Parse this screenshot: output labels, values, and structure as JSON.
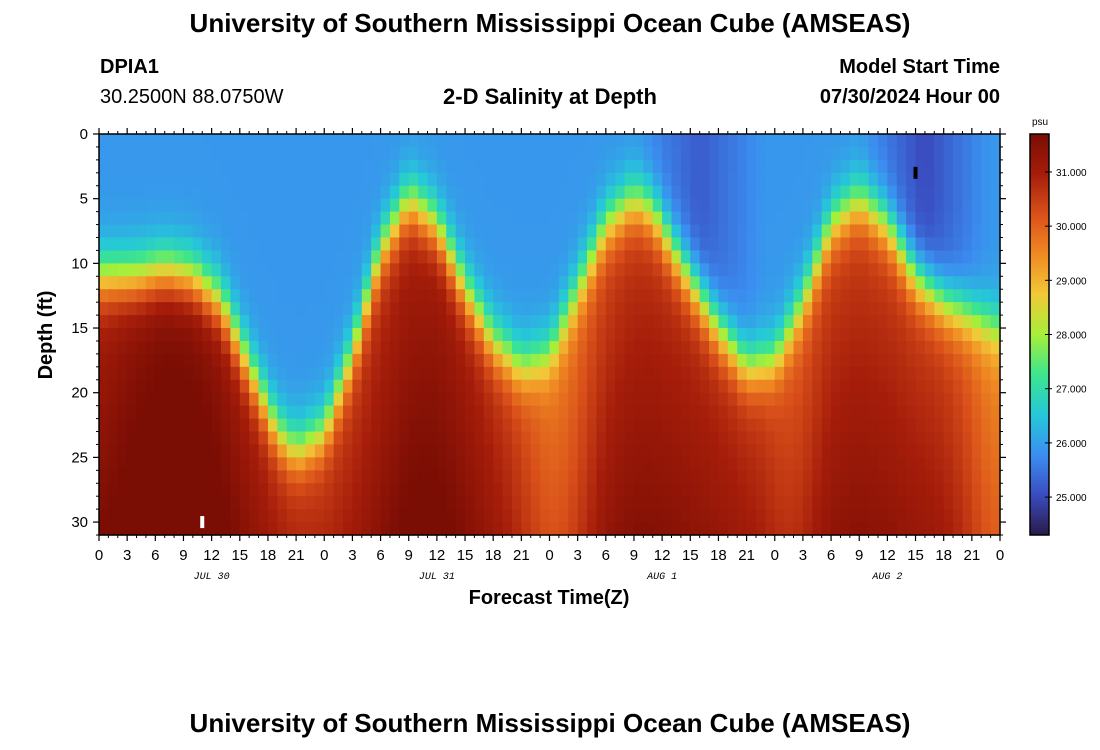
{
  "header": {
    "title": "University of Southern Mississippi Ocean Cube (AMSEAS)",
    "station_id": "DPIA1",
    "station_coords": "30.2500N  88.0750W",
    "chart_title": "2-D Salinity at Depth",
    "model_start_label": "Model Start Time",
    "model_start_value": "07/30/2024 Hour 00"
  },
  "footer": {
    "title": "University of Southern Mississippi Ocean Cube (AMSEAS)"
  },
  "chart_data": {
    "type": "heatmap",
    "title": "2-D Salinity at Depth",
    "xlabel": "Forecast Time(Z)",
    "ylabel": "Depth (ft)",
    "x_range_hours": [
      0,
      96
    ],
    "y_range_ft": [
      0,
      31
    ],
    "y_ticks": [
      0,
      5,
      10,
      15,
      20,
      25,
      30
    ],
    "x_tick_labels": [
      "0",
      "3",
      "6",
      "9",
      "12",
      "15",
      "18",
      "21",
      "0",
      "3",
      "6",
      "9",
      "12",
      "15",
      "18",
      "21",
      "0",
      "3",
      "6",
      "9",
      "12",
      "15",
      "18",
      "21",
      "0",
      "3",
      "6",
      "9",
      "12",
      "15",
      "18",
      "21",
      "0"
    ],
    "date_labels": [
      {
        "text": "JUL 30",
        "hour": 12
      },
      {
        "text": "JUL 31",
        "hour": 36
      },
      {
        "text": "AUG 1",
        "hour": 60
      },
      {
        "text": "AUG 2",
        "hour": 84
      }
    ],
    "colorbar": {
      "unit": "psu",
      "min": 24.3,
      "max": 31.7,
      "tick_values": [
        25.0,
        26.0,
        27.0,
        28.0,
        29.0,
        30.0,
        31.0
      ],
      "tick_labels": [
        "25.000",
        "26.000",
        "27.000",
        "28.000",
        "29.000",
        "30.000",
        "31.000"
      ],
      "colors": [
        "#2a1a48",
        "#3a4cc0",
        "#3b8ef0",
        "#25c8d8",
        "#3de58e",
        "#a6ef3a",
        "#f2c838",
        "#f08a22",
        "#d9501a",
        "#a51d0a",
        "#7a0d04"
      ]
    },
    "halocline_depth_ft": [
      {
        "hour": 0,
        "depth": 11
      },
      {
        "hour": 4,
        "depth": 11
      },
      {
        "hour": 7,
        "depth": 10.5
      },
      {
        "hour": 10,
        "depth": 11
      },
      {
        "hour": 13,
        "depth": 13
      },
      {
        "hour": 16,
        "depth": 18
      },
      {
        "hour": 19,
        "depth": 23
      },
      {
        "hour": 21,
        "depth": 24.5
      },
      {
        "hour": 24,
        "depth": 23
      },
      {
        "hour": 27,
        "depth": 17
      },
      {
        "hour": 30,
        "depth": 9
      },
      {
        "hour": 33,
        "depth": 5
      },
      {
        "hour": 36,
        "depth": 7
      },
      {
        "hour": 39,
        "depth": 12
      },
      {
        "hour": 42,
        "depth": 16
      },
      {
        "hour": 45,
        "depth": 18
      },
      {
        "hour": 48,
        "depth": 17
      },
      {
        "hour": 51,
        "depth": 12
      },
      {
        "hour": 54,
        "depth": 7
      },
      {
        "hour": 57,
        "depth": 5
      },
      {
        "hour": 59,
        "depth": 6
      },
      {
        "hour": 62,
        "depth": 10
      },
      {
        "hour": 66,
        "depth": 15
      },
      {
        "hour": 69,
        "depth": 18
      },
      {
        "hour": 72,
        "depth": 17.5
      },
      {
        "hour": 75,
        "depth": 13
      },
      {
        "hour": 78,
        "depth": 7
      },
      {
        "hour": 81,
        "depth": 5
      },
      {
        "hour": 84,
        "depth": 7
      },
      {
        "hour": 87,
        "depth": 11
      },
      {
        "hour": 90,
        "depth": 13
      },
      {
        "hour": 93,
        "depth": 14
      },
      {
        "hour": 96,
        "depth": 15
      }
    ],
    "markers": [
      {
        "hour": 11,
        "depth": 30,
        "color": "#ffffff"
      },
      {
        "hour": 87,
        "depth": 3,
        "color": "#000000"
      }
    ]
  }
}
